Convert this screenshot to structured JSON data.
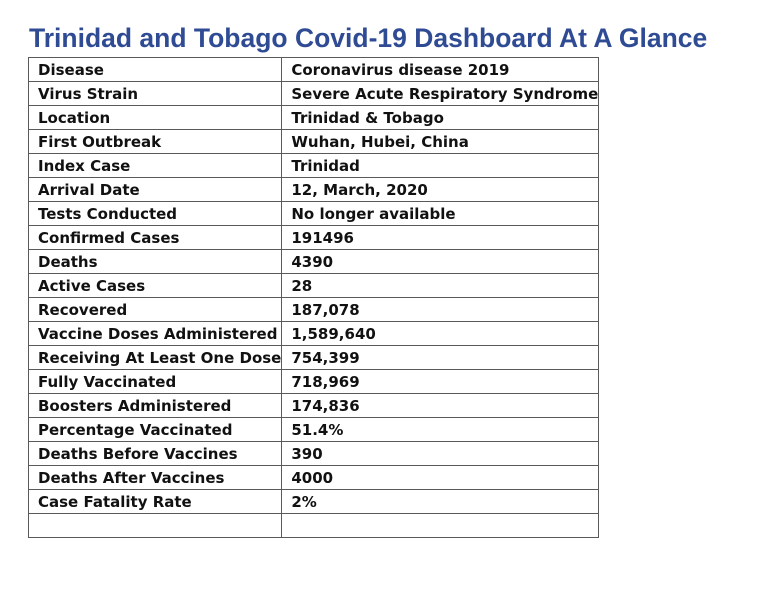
{
  "title": "Trinidad and Tobago Covid-19 Dashboard At A Glance",
  "rows": [
    {
      "label": "Disease",
      "value": "Coronavirus disease 2019"
    },
    {
      "label": "Virus Strain",
      "value": "Severe Acute Respiratory Syndrome"
    },
    {
      "label": "Location",
      "value": "Trinidad & Tobago"
    },
    {
      "label": "First Outbreak",
      "value": "Wuhan, Hubei, China"
    },
    {
      "label": "Index Case",
      "value": "Trinidad"
    },
    {
      "label": "Arrival Date",
      "value": "12, March, 2020"
    },
    {
      "label": "Tests Conducted",
      "value": "No longer available"
    },
    {
      "label": "Confirmed Cases",
      "value": "191496"
    },
    {
      "label": "Deaths",
      "value": "4390"
    },
    {
      "label": "Active Cases",
      "value": "28"
    },
    {
      "label": "Recovered",
      "value": "187,078"
    },
    {
      "label": "Vaccine Doses Administered",
      "value": "1,589,640"
    },
    {
      "label": "Receiving At Least One Dose",
      "value": "754,399"
    },
    {
      "label": "Fully Vaccinated",
      "value": "718,969"
    },
    {
      "label": "Boosters Administered",
      "value": "174,836"
    },
    {
      "label": "Percentage Vaccinated",
      "value": "51.4%"
    },
    {
      "label": "Deaths Before Vaccines",
      "value": "390"
    },
    {
      "label": "Deaths After Vaccines",
      "value": "4000"
    },
    {
      "label": "Case Fatality Rate",
      "value": "2%"
    },
    {
      "label": "",
      "value": ""
    }
  ]
}
